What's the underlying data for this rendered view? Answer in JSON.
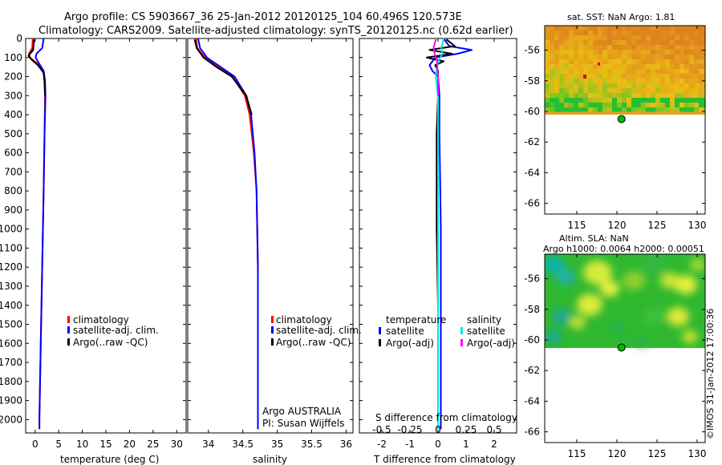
{
  "header": {
    "line1": "Argo profile: CS 5903667_36 25-Jan-2012 20120125_104 60.496S 120.573E",
    "line2": "Climatology: CARS2009. Satellite-adjusted climatology: synTS_20120125.nc (0.62d earlier)"
  },
  "colors": {
    "climatology": "#ff0000",
    "satellite": "#0000ff",
    "argo": "#000000",
    "sat_salinity": "#00e5e5",
    "argo_salinity_diff": "#ff00ff",
    "float_marker": "#00bb00"
  },
  "chart_data": [
    {
      "type": "line",
      "id": "temperature",
      "xlabel": "temperature (deg C)",
      "ylabel": "",
      "xlim": [
        -2,
        32
      ],
      "ylim": [
        2070,
        0
      ],
      "xticks": [
        0,
        5,
        10,
        15,
        20,
        25,
        30
      ],
      "xtick_labels": [
        "0",
        "5",
        "10",
        "15",
        "20",
        "25",
        "30"
      ],
      "yticks": [
        0,
        100,
        200,
        300,
        400,
        500,
        600,
        700,
        800,
        900,
        1000,
        1100,
        1200,
        1300,
        1400,
        1500,
        1600,
        1700,
        1800,
        1900,
        2000
      ],
      "ytick_labels": [
        "0",
        "100",
        "200",
        "300",
        "400",
        "500",
        "600",
        "700",
        "800",
        "900",
        "1000",
        "1100",
        "1200",
        "1300",
        "1400",
        "1500",
        "1600",
        "1700",
        "1800",
        "1900",
        "2000"
      ],
      "legend": [
        "climatology",
        "satellite-adj. clim.",
        "Argo(..raw -QC)"
      ],
      "series": [
        {
          "name": "climatology",
          "color": "#ff0000",
          "depth": [
            0,
            50,
            80,
            100,
            130,
            170,
            220,
            300,
            500,
            800,
            1200,
            1600,
            2000,
            2050
          ],
          "values": [
            -0.5,
            -0.6,
            -1.3,
            -1.1,
            0.4,
            1.7,
            2.0,
            2.1,
            2.0,
            1.8,
            1.5,
            1.2,
            0.9,
            0.9
          ]
        },
        {
          "name": "satellite-adj. clim.",
          "color": "#0000ff",
          "depth": [
            0,
            50,
            80,
            100,
            130,
            170,
            220,
            300,
            500,
            800,
            1200,
            1600,
            2000,
            2050
          ],
          "values": [
            1.8,
            1.5,
            0.3,
            0.1,
            0.8,
            1.8,
            2.1,
            2.2,
            2.0,
            1.8,
            1.5,
            1.2,
            0.9,
            0.9
          ]
        },
        {
          "name": "Argo(..raw -QC)",
          "color": "#000000",
          "depth": [
            5,
            60,
            90,
            110,
            140,
            180,
            230,
            300
          ],
          "values": [
            -0.2,
            -0.4,
            -1.4,
            -0.8,
            0.6,
            1.8,
            2.0,
            2.1
          ]
        }
      ]
    },
    {
      "type": "line",
      "id": "salinity",
      "xlabel": "salinity",
      "xlim": [
        33.7,
        36.1
      ],
      "ylim": [
        2070,
        0
      ],
      "xticks": [
        34,
        34.5,
        35,
        35.5,
        36
      ],
      "xtick_labels": [
        "34",
        "34.5",
        "35",
        "35.5",
        "36"
      ],
      "legend": [
        "climatology",
        "satellite-adj. clim.",
        "Argo(..raw -QC)"
      ],
      "annotation1": "Argo AUSTRALIA",
      "annotation2": "PI: Susan Wijffels",
      "series": [
        {
          "name": "climatology",
          "color": "#ff0000",
          "depth": [
            0,
            50,
            100,
            150,
            200,
            300,
            400,
            600,
            800,
            1200,
            2050
          ],
          "values": [
            33.82,
            33.84,
            33.95,
            34.15,
            34.35,
            34.53,
            34.6,
            34.66,
            34.7,
            34.72,
            34.72
          ]
        },
        {
          "name": "satellite-adj. clim.",
          "color": "#0000ff",
          "depth": [
            0,
            50,
            100,
            150,
            200,
            300,
            400,
            600,
            800,
            1200,
            2050
          ],
          "values": [
            33.85,
            33.88,
            33.98,
            34.18,
            34.38,
            34.55,
            34.62,
            34.67,
            34.7,
            34.72,
            34.72
          ]
        },
        {
          "name": "Argo(..raw -QC)",
          "color": "#000000",
          "depth": [
            5,
            50,
            100,
            150,
            200,
            300,
            400
          ],
          "values": [
            33.8,
            33.83,
            33.93,
            34.12,
            34.34,
            34.55,
            34.63
          ]
        }
      ]
    },
    {
      "type": "line",
      "id": "difference",
      "xlabel": "T difference from climatology",
      "top_axis_label": "S difference from climatology",
      "xlim": [
        -2.8,
        2.8
      ],
      "ylim": [
        2070,
        0
      ],
      "xticks": [
        -2,
        -1,
        0,
        1,
        2
      ],
      "xtick_labels": [
        "-2",
        "-1",
        "0",
        "1",
        "2"
      ],
      "sticks": [
        -0.5,
        -0.25,
        0,
        0.25,
        0.5
      ],
      "stick_labels": [
        "-0.5",
        "-0.25",
        "0",
        "0.25",
        "0.5"
      ],
      "legend_temperature_title": "temperature",
      "legend_salinity_title": "salinity",
      "legend_temperature": [
        "satellite",
        "Argo(-adj)"
      ],
      "legend_salinity": [
        "satellite",
        "Argo(-adj)"
      ],
      "series": [
        {
          "name": "T satellite",
          "color": "#0000ff",
          "depth": [
            0,
            40,
            60,
            80,
            100,
            120,
            140,
            170,
            200,
            300,
            500,
            1000,
            2050
          ],
          "values": [
            0.2,
            0.4,
            1.2,
            0.7,
            -0.1,
            -0.2,
            -0.3,
            -0.2,
            0.0,
            0.05,
            0.05,
            0.1,
            0.1
          ]
        },
        {
          "name": "T Argo(-adj)",
          "color": "#000000",
          "depth": [
            5,
            40,
            60,
            80,
            100,
            120,
            140,
            170,
            200,
            300,
            500,
            1000,
            1400,
            2050
          ],
          "values": [
            0.3,
            0.6,
            -0.3,
            0.5,
            -0.4,
            0.2,
            -0.1,
            0.0,
            0.0,
            0.0,
            -0.05,
            -0.05,
            0.0,
            0.0
          ]
        },
        {
          "name": "S satellite",
          "color": "#00e5e5",
          "depth": [
            0,
            50,
            80,
            120,
            200,
            300,
            500,
            800,
            1200,
            2050
          ],
          "values": [
            0.05,
            0.03,
            0.04,
            0.0,
            -0.02,
            0.0,
            0.0,
            0.0,
            0.0,
            0.0
          ]
        },
        {
          "name": "S Argo(-adj)",
          "color": "#ff00ff",
          "depth": [
            5,
            50,
            80,
            120,
            200,
            300
          ],
          "values": [
            -0.02,
            -0.04,
            -0.03,
            -0.01,
            0.0,
            0.0
          ]
        }
      ]
    },
    {
      "type": "heatmap",
      "id": "sst_map",
      "title": "sat. SST: NaN Argo: 1.81",
      "xlim": [
        111,
        131
      ],
      "ylim": [
        -66.7,
        -54.4
      ],
      "xticks": [
        115,
        120,
        125,
        130
      ],
      "xtick_labels": [
        "115",
        "120",
        "125",
        "130"
      ],
      "yticks": [
        -56,
        -58,
        -60,
        -62,
        -64,
        -66
      ],
      "ytick_labels": [
        "-56",
        "-58",
        "-60",
        "-62",
        "-64",
        "-66"
      ],
      "coverage_lat": [
        -54.4,
        -60.0
      ],
      "float_position": [
        120.573,
        -60.496
      ]
    },
    {
      "type": "heatmap",
      "id": "sla_map",
      "title_line1": "Altim. SLA: NaN",
      "title_line2": "Argo h1000: 0.0064 h2000: 0.00051",
      "xlim": [
        111,
        131
      ],
      "ylim": [
        -66.7,
        -54.4
      ],
      "xticks": [
        115,
        120,
        125,
        130
      ],
      "xtick_labels": [
        "115",
        "120",
        "125",
        "130"
      ],
      "yticks": [
        -56,
        -58,
        -60,
        -62,
        -64,
        -66
      ],
      "ytick_labels": [
        "-56",
        "-58",
        "-60",
        "-62",
        "-64",
        "-66"
      ],
      "coverage_lat": [
        -54.4,
        -60.0
      ],
      "float_position": [
        120.573,
        -60.496
      ]
    }
  ],
  "credit": "©IMOS 31-Jan-2012 17:00:36"
}
